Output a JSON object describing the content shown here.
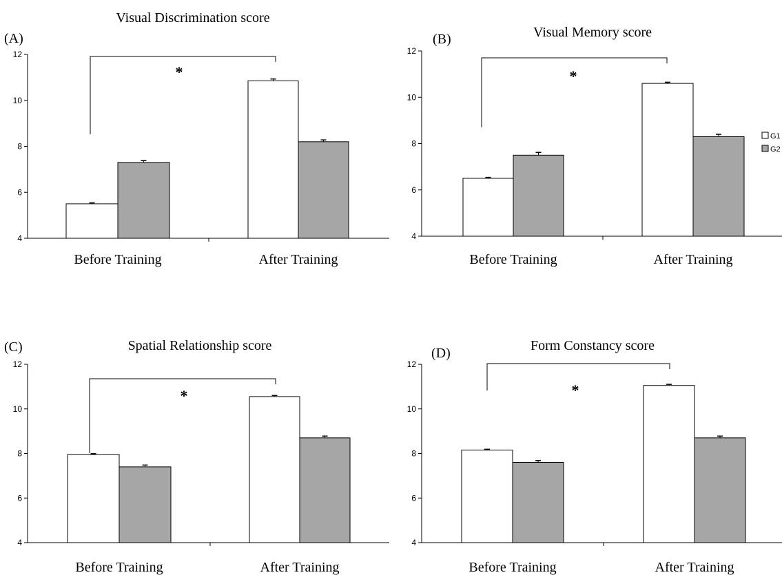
{
  "figure": {
    "legend": [
      {
        "label": "G1",
        "color": "#ffffff"
      },
      {
        "label": "G2",
        "color": "#a6a6a6"
      }
    ]
  },
  "chart_data": [
    {
      "type": "bar",
      "panel": "(A)",
      "title": "Visual Discrimination score",
      "categories": [
        "Before Training",
        "After Training"
      ],
      "series": [
        {
          "name": "G1",
          "values": [
            5.5,
            10.85
          ],
          "errors": [
            0.04,
            0.08
          ],
          "color": "#ffffff"
        },
        {
          "name": "G2",
          "values": [
            7.3,
            8.2
          ],
          "errors": [
            0.08,
            0.08
          ],
          "color": "#a6a6a6"
        }
      ],
      "ylim": [
        4,
        12
      ],
      "yticks": [
        4,
        6,
        8,
        10,
        12
      ],
      "significance": "*",
      "grid": false
    },
    {
      "type": "bar",
      "panel": "(B)",
      "title": "Visual Memory score",
      "categories": [
        "Before Training",
        "After Training"
      ],
      "series": [
        {
          "name": "G1",
          "values": [
            6.5,
            10.6
          ],
          "errors": [
            0.04,
            0.05
          ],
          "color": "#ffffff"
        },
        {
          "name": "G2",
          "values": [
            7.5,
            8.3
          ],
          "errors": [
            0.12,
            0.1
          ],
          "color": "#a6a6a6"
        }
      ],
      "ylim": [
        4,
        12
      ],
      "yticks": [
        4,
        6,
        8,
        10,
        12
      ],
      "significance": "*",
      "grid": false
    },
    {
      "type": "bar",
      "panel": "(C)",
      "title": "Spatial Relationship score",
      "categories": [
        "Before Training",
        "After Training"
      ],
      "series": [
        {
          "name": "G1",
          "values": [
            7.95,
            10.55
          ],
          "errors": [
            0.04,
            0.05
          ],
          "color": "#ffffff"
        },
        {
          "name": "G2",
          "values": [
            7.4,
            8.7
          ],
          "errors": [
            0.08,
            0.08
          ],
          "color": "#a6a6a6"
        }
      ],
      "ylim": [
        4,
        12
      ],
      "yticks": [
        4,
        6,
        8,
        10,
        12
      ],
      "significance": "*",
      "grid": false
    },
    {
      "type": "bar",
      "panel": "(D)",
      "title": "Form Constancy score",
      "categories": [
        "Before Training",
        "After Training"
      ],
      "series": [
        {
          "name": "G1",
          "values": [
            8.15,
            11.05
          ],
          "errors": [
            0.04,
            0.05
          ],
          "color": "#ffffff"
        },
        {
          "name": "G2",
          "values": [
            7.6,
            8.7
          ],
          "errors": [
            0.08,
            0.08
          ],
          "color": "#a6a6a6"
        }
      ],
      "ylim": [
        4,
        12
      ],
      "yticks": [
        4,
        6,
        8,
        10,
        12
      ],
      "significance": "*",
      "grid": false
    }
  ]
}
